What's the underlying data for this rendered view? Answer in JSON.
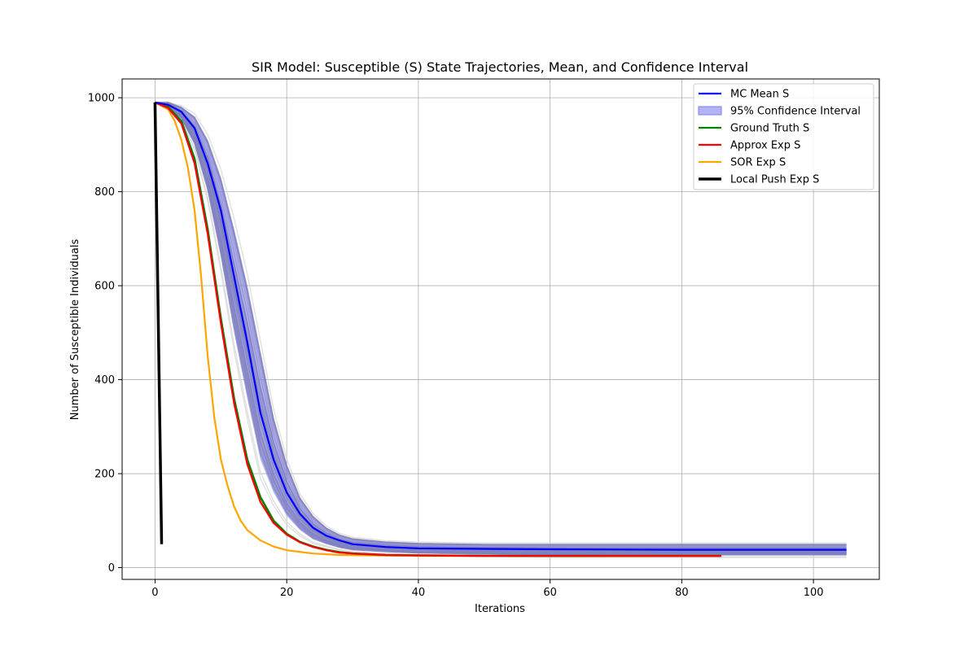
{
  "chart_data": {
    "type": "line",
    "title": "SIR Model: Susceptible (S) State Trajectories, Mean, and Confidence Interval",
    "xlabel": "Iterations",
    "ylabel": "Number of Susceptible Individuals",
    "xlim": [
      -5,
      110
    ],
    "ylim": [
      -25,
      1040
    ],
    "xticks": [
      0,
      20,
      40,
      60,
      80,
      100
    ],
    "yticks": [
      0,
      200,
      400,
      600,
      800,
      1000
    ],
    "grid": true,
    "legend_position": "top-right",
    "colors": {
      "mc_mean": "#0000ff",
      "ci": "#8080f0",
      "ground_truth": "#008000",
      "approx_exp": "#ff0000",
      "sor_exp": "#ffa500",
      "local_push": "#000000",
      "trajectory": "#808080",
      "trajectory_light": "#d9d9d9"
    },
    "series": [
      {
        "name": "MC Mean S",
        "x": [
          0,
          2,
          4,
          6,
          8,
          10,
          12,
          14,
          16,
          18,
          20,
          22,
          24,
          26,
          28,
          30,
          35,
          40,
          50,
          60,
          80,
          105
        ],
        "values": [
          990,
          985,
          970,
          935,
          860,
          760,
          620,
          480,
          330,
          230,
          160,
          115,
          85,
          68,
          58,
          50,
          44,
          41,
          40,
          39,
          38,
          38
        ]
      },
      {
        "name": "95% Confidence Interval",
        "x": [
          0,
          2,
          4,
          6,
          8,
          10,
          12,
          14,
          16,
          18,
          20,
          22,
          24,
          26,
          28,
          30,
          35,
          40,
          50,
          60,
          80,
          105
        ],
        "lower": [
          990,
          980,
          955,
          900,
          800,
          660,
          500,
          360,
          230,
          160,
          110,
          80,
          60,
          50,
          42,
          37,
          33,
          30,
          28,
          26,
          26,
          26
        ],
        "upper": [
          990,
          990,
          980,
          960,
          910,
          830,
          720,
          600,
          460,
          320,
          220,
          150,
          110,
          85,
          70,
          62,
          55,
          52,
          50,
          50,
          50,
          50
        ]
      },
      {
        "name": "Ground Truth S",
        "x": [
          0,
          2,
          4,
          6,
          8,
          10,
          12,
          14,
          16,
          18,
          20,
          22,
          24,
          26,
          28,
          30,
          35,
          40,
          50,
          60,
          70,
          86
        ],
        "values": [
          990,
          980,
          950,
          870,
          720,
          530,
          360,
          230,
          150,
          100,
          72,
          55,
          45,
          38,
          33,
          30,
          27,
          26,
          25,
          25,
          25,
          25
        ]
      },
      {
        "name": "Approx Exp S",
        "x": [
          0,
          2,
          4,
          6,
          8,
          10,
          12,
          14,
          16,
          18,
          20,
          22,
          24,
          26,
          28,
          30,
          35,
          40,
          50,
          60,
          70,
          86
        ],
        "values": [
          990,
          978,
          945,
          860,
          710,
          520,
          350,
          220,
          140,
          95,
          70,
          54,
          44,
          37,
          32,
          30,
          27,
          26,
          25,
          25,
          25,
          25
        ]
      },
      {
        "name": "SOR Exp S",
        "x": [
          0,
          2,
          3,
          4,
          5,
          6,
          7,
          8,
          9,
          10,
          11,
          12,
          13,
          14,
          16,
          18,
          20,
          24,
          28,
          32,
          40,
          50,
          68
        ],
        "values": [
          990,
          975,
          950,
          910,
          850,
          760,
          620,
          450,
          320,
          230,
          175,
          130,
          100,
          80,
          58,
          45,
          37,
          30,
          27,
          26,
          25,
          25,
          25
        ]
      },
      {
        "name": "Local Push Exp S",
        "x": [
          0,
          1
        ],
        "values": [
          990,
          50
        ]
      }
    ]
  }
}
